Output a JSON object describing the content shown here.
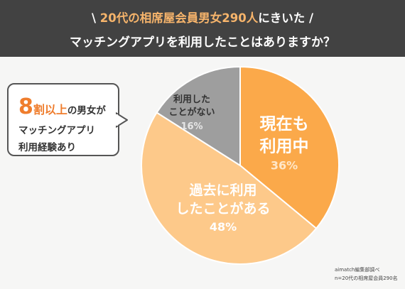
{
  "header": {
    "line1_prefix": "\\ ",
    "line1_accent": "20代の相席屋会員男女290人",
    "line1_suffix": "にきいた /",
    "line2": "マッチングアプリを利用したことはありますか？"
  },
  "callout": {
    "number": "8",
    "emph": "割以上",
    "rest": "の男女が",
    "line2": "マッチングアプリ",
    "line3": "利用経験あり"
  },
  "chart_data": {
    "type": "pie",
    "title": "マッチングアプリを利用したことはありますか？",
    "slices": [
      {
        "label_lines": [
          "現在も",
          "利用中"
        ],
        "value": 36,
        "value_label": "36%",
        "color": "#fba94a"
      },
      {
        "label_lines": [
          "過去に利用",
          "したことがある"
        ],
        "value": 48,
        "value_label": "48%",
        "color": "#fdc98a"
      },
      {
        "label_lines": [
          "利用した",
          "ことがない"
        ],
        "value": 16,
        "value_label": "16%",
        "color": "#9e9e9e"
      }
    ]
  },
  "footer": {
    "source": "aimatch編集部調べ",
    "sample": "n=20代の相席屋会員290名"
  }
}
